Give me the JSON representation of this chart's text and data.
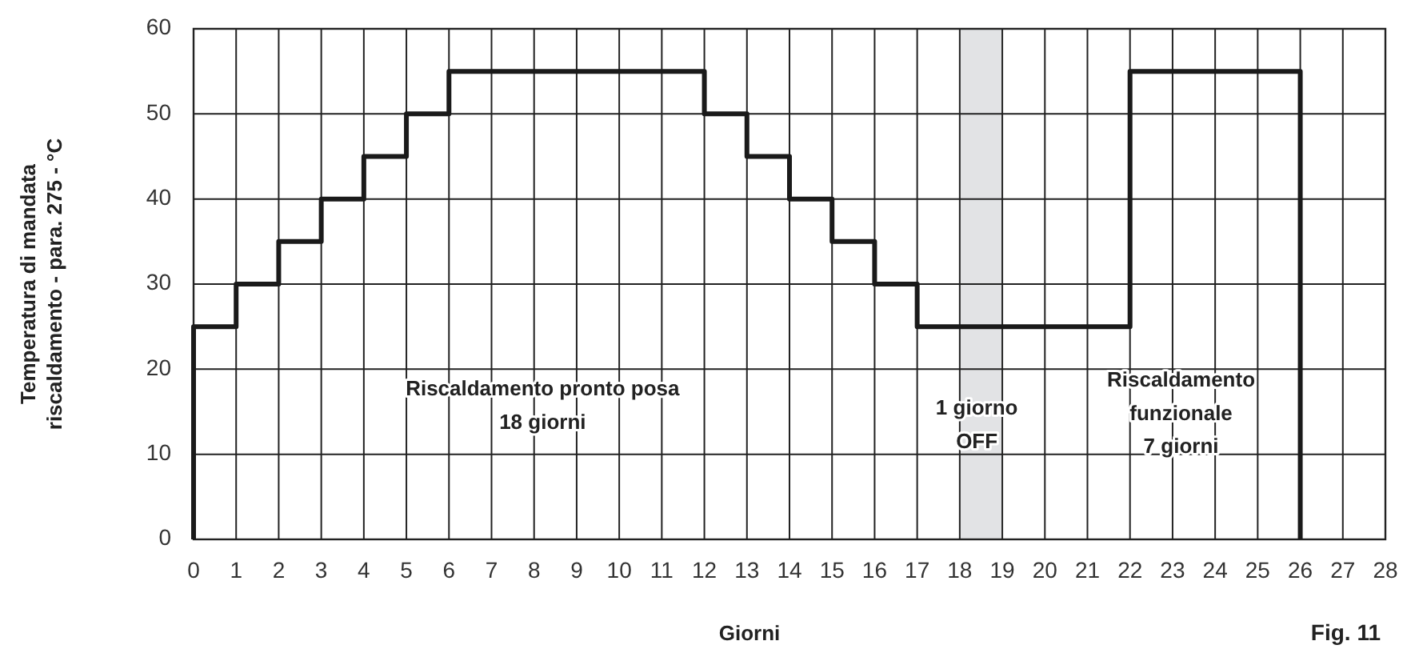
{
  "chart_data": {
    "type": "step",
    "xlabel": "Giorni",
    "ylabel": "Temperatura di mandata\nriscaldamento - para. 275 - °C",
    "x": [
      0,
      0,
      1,
      2,
      3,
      4,
      5,
      6,
      12,
      13,
      14,
      15,
      16,
      17,
      22,
      26,
      26
    ],
    "series": [
      {
        "color": "#1a1a1a",
        "values": [
          0,
          25,
          30,
          35,
          40,
          45,
          50,
          55,
          50,
          45,
          40,
          35,
          30,
          25,
          55,
          55,
          0
        ]
      }
    ],
    "xlim": [
      0,
      28
    ],
    "xticks": [
      0,
      1,
      2,
      3,
      4,
      5,
      6,
      7,
      8,
      9,
      10,
      11,
      12,
      13,
      14,
      15,
      16,
      17,
      18,
      19,
      20,
      21,
      22,
      23,
      24,
      25,
      26,
      27,
      28
    ],
    "ylim": [
      0,
      60
    ],
    "yticks": [
      0,
      10,
      20,
      30,
      40,
      50,
      60
    ],
    "grid": true,
    "marker": "none",
    "line_style": "solid",
    "bands": [
      {
        "axis": "x",
        "from": 18,
        "to": 19,
        "color": "#e2e3e5"
      }
    ],
    "annotations": [
      "Riscaldamento pronto posa\n18 giorni",
      "1 giorno\nOFF",
      "Riscaldamento\nfunzionale\n7 giorni",
      "Fig. 11"
    ]
  }
}
